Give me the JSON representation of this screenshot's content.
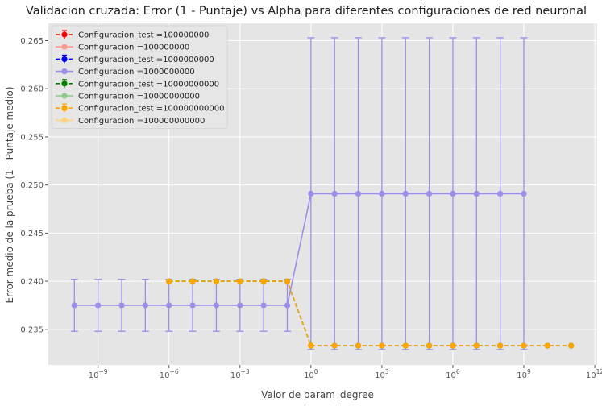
{
  "chart_data": {
    "type": "line",
    "title": "Validacion cruzada: Error (1 - Puntaje) vs Alpha para diferentes configuraciones de red neuronal",
    "xlabel": "Valor de param_degree",
    "ylabel": "Error medio de la prueba (1 - Puntaje medio)",
    "xscale": "log",
    "xlim_log10": [
      -11.1,
      12.1
    ],
    "ylim": [
      0.2313,
      0.2668
    ],
    "grid": true,
    "legend_position": "top-left",
    "x_ticks": [
      {
        "base": "10",
        "exp": "−9",
        "log10": -9
      },
      {
        "base": "10",
        "exp": "−6",
        "log10": -6
      },
      {
        "base": "10",
        "exp": "−3",
        "log10": -3
      },
      {
        "base": "10",
        "exp": "0",
        "log10": 0
      },
      {
        "base": "10",
        "exp": "3",
        "log10": 3
      },
      {
        "base": "10",
        "exp": "6",
        "log10": 6
      },
      {
        "base": "10",
        "exp": "9",
        "log10": 9
      },
      {
        "base": "10",
        "exp": "12",
        "log10": 12
      }
    ],
    "y_ticks": [
      "0.235",
      "0.240",
      "0.245",
      "0.250",
      "0.255",
      "0.260",
      "0.265"
    ],
    "series": [
      {
        "name": "Configuracion_test =100000000",
        "style": "dashed",
        "color": "#ff0000",
        "x_log10": [],
        "values": [],
        "err": []
      },
      {
        "name": "Configuracion =100000000",
        "style": "solid",
        "color": "#ff9a8e",
        "x_log10": [],
        "values": [],
        "err": []
      },
      {
        "name": "Configuracion_test =1000000000",
        "style": "dashed",
        "color": "#0000ff",
        "x_log10": [],
        "values": [],
        "err": []
      },
      {
        "name": "Configuracion =1000000000",
        "style": "solid",
        "color": "#9a8ee8",
        "x_log10": [
          -10,
          -9,
          -8,
          -7,
          -6,
          -5,
          -4,
          -3,
          -2,
          -1,
          0,
          1,
          2,
          3,
          4,
          5,
          6,
          7,
          8,
          9
        ],
        "values": [
          0.2375,
          0.2375,
          0.2375,
          0.2375,
          0.2375,
          0.2375,
          0.2375,
          0.2375,
          0.2375,
          0.2375,
          0.2491,
          0.2491,
          0.2491,
          0.2491,
          0.2491,
          0.2491,
          0.2491,
          0.2491,
          0.2491,
          0.2491
        ],
        "err": [
          0.0027,
          0.0027,
          0.0027,
          0.0027,
          0.0027,
          0.0027,
          0.0027,
          0.0027,
          0.0027,
          0.0027,
          0.0162,
          0.0162,
          0.0162,
          0.0162,
          0.0162,
          0.0162,
          0.0162,
          0.0162,
          0.0162,
          0.0162
        ]
      },
      {
        "name": "Configuracion_test =10000000000",
        "style": "dashed",
        "color": "#008000",
        "x_log10": [
          -6,
          -5,
          -4,
          -3,
          -2,
          -1,
          0,
          1,
          2,
          3,
          4,
          5,
          6,
          7,
          8,
          9,
          10,
          11
        ],
        "values": [
          0.24,
          0.24,
          0.24,
          0.24,
          0.24,
          0.24,
          0.2333,
          0.2333,
          0.2333,
          0.2333,
          0.2333,
          0.2333,
          0.2333,
          0.2333,
          0.2333,
          0.2333,
          0.2333,
          0.2333
        ],
        "err": []
      },
      {
        "name": "Configuracion =10000000000",
        "style": "solid",
        "color": "#8fc98f",
        "x_log10": [],
        "values": [],
        "err": []
      },
      {
        "name": "Configuracion_test =100000000000",
        "style": "dashed",
        "color": "#ffa500",
        "x_log10": [
          -6,
          -5,
          -4,
          -3,
          -2,
          -1,
          0,
          1,
          2,
          3,
          4,
          5,
          6,
          7,
          8,
          9,
          10,
          11
        ],
        "values": [
          0.24,
          0.24,
          0.24,
          0.24,
          0.24,
          0.24,
          0.2333,
          0.2333,
          0.2333,
          0.2333,
          0.2333,
          0.2333,
          0.2333,
          0.2333,
          0.2333,
          0.2333,
          0.2333,
          0.2333
        ],
        "err": []
      },
      {
        "name": "Configuracion =100000000000",
        "style": "solid",
        "color": "#ffd27f",
        "x_log10": [],
        "values": [],
        "err": []
      }
    ]
  }
}
